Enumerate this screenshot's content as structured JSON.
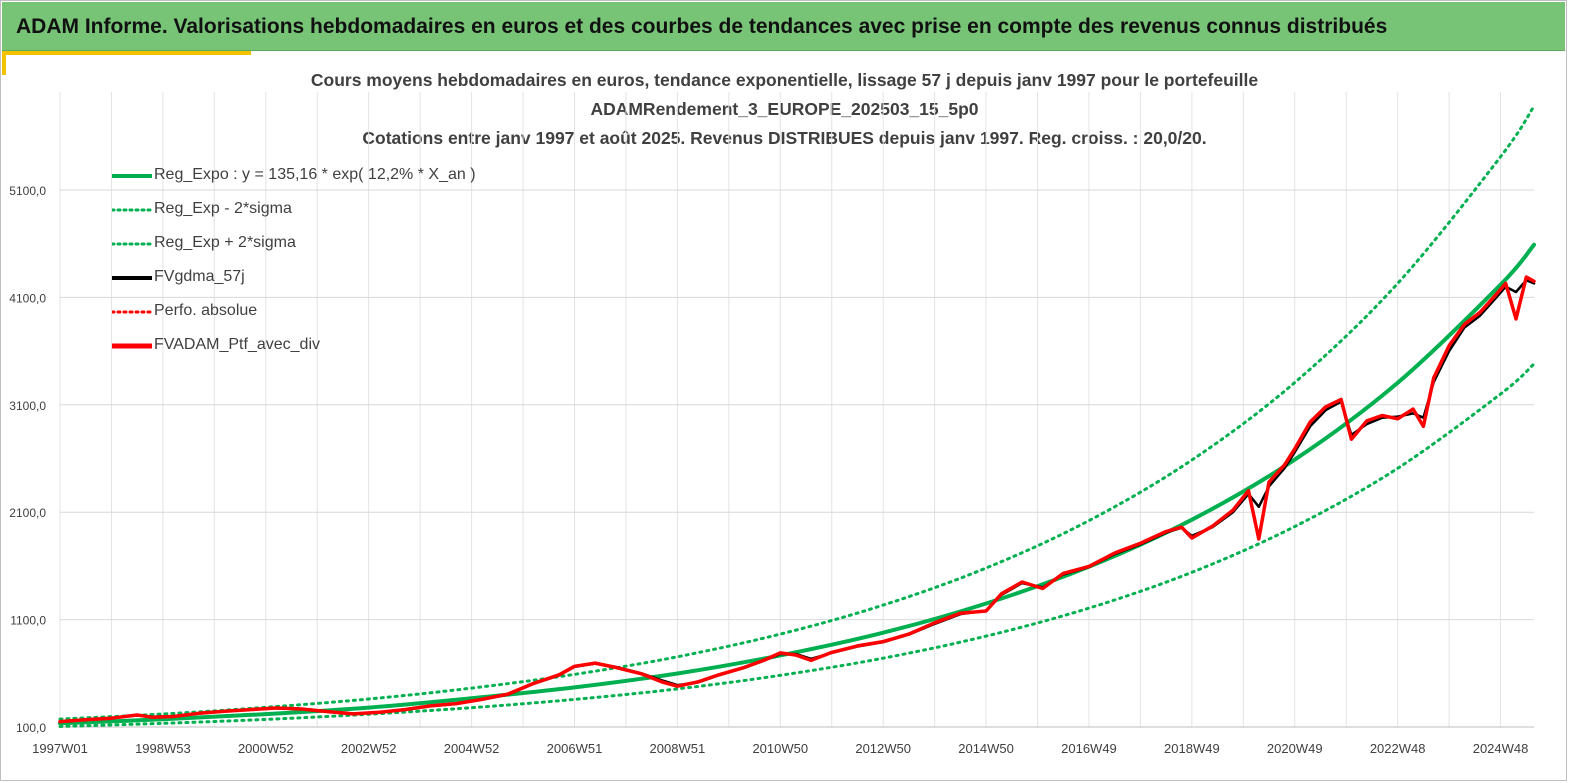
{
  "header": {
    "title": "ADAM Informe. Valorisations hebdomadaires en euros et des courbes de tendances avec prise en compte des revenus connus distribués"
  },
  "colors": {
    "header_bg": "#77c477",
    "accent": "#f2c200",
    "regression": "#00b050",
    "smoothed": "#000000",
    "portfolio": "#ff0000"
  },
  "chart_data": {
    "type": "line",
    "title_lines": [
      "Cours moyens hebdomadaires  en euros, tendance exponentielle, lissage 57 j depuis janv 1997 pour le portefeuille",
      "ADAMRendement_3_EUROPE_202503_15_5p0",
      "Cotations  entre janv 1997 et août 2025. Revenus DISTRIBUES depuis janv 1997. Reg. croiss. : 20,0/20."
    ],
    "xlabel": "",
    "ylabel": "",
    "x_range": [
      1997.0,
      2025.65
    ],
    "ylim": [
      100,
      5100
    ],
    "y_tick_values": [
      100,
      1100,
      2100,
      3100,
      4100,
      5100
    ],
    "y_tick_labels": [
      "100,0",
      "1100,0",
      "2100,0",
      "3100,0",
      "4100,0",
      "5100,0"
    ],
    "x_ticks": [
      {
        "label": "1997W01",
        "t": 1997.0
      },
      {
        "label": "1998W53",
        "t": 1999.0
      },
      {
        "label": "2000W52",
        "t": 2001.0
      },
      {
        "label": "2002W52",
        "t": 2003.0
      },
      {
        "label": "2004W52",
        "t": 2005.0
      },
      {
        "label": "2006W51",
        "t": 2007.0
      },
      {
        "label": "2008W51",
        "t": 2009.0
      },
      {
        "label": "2010W50",
        "t": 2011.0
      },
      {
        "label": "2012W50",
        "t": 2013.0
      },
      {
        "label": "2014W50",
        "t": 2015.0
      },
      {
        "label": "2016W49",
        "t": 2017.0
      },
      {
        "label": "2018W49",
        "t": 2019.0
      },
      {
        "label": "2020W49",
        "t": 2021.0
      },
      {
        "label": "2022W48",
        "t": 2023.0
      },
      {
        "label": "2024W48",
        "t": 2025.0
      }
    ],
    "grid": true,
    "legend_position": "top-left",
    "legend": [
      {
        "label": "Reg_Expo : y = 135,16 * exp( 12,2% *  X_an )",
        "color": "#00b050",
        "style": "solid"
      },
      {
        "label": "Reg_Exp - 2*sigma",
        "color": "#00b050",
        "style": "dotted"
      },
      {
        "label": "Reg_Exp + 2*sigma",
        "color": "#00b050",
        "style": "dotted"
      },
      {
        "label": "FVgdma_57j",
        "color": "#000000",
        "style": "solid"
      },
      {
        "label": "Perfo. absolue",
        "color": "#ff0000",
        "style": "dotted"
      },
      {
        "label": "FVADAM_Ptf_avec_div",
        "color": "#ff0000",
        "style": "solid"
      }
    ],
    "series": [
      {
        "name": "Reg_Expo : y = 135,16 * exp( 12,2% *  X_an )",
        "x": [
          1997.0,
          1999.0,
          2001.0,
          2003.0,
          2005.0,
          2007.0,
          2009.0,
          2011.0,
          2013.0,
          2015.0,
          2017.0,
          2019.0,
          2021.0,
          2023.0,
          2025.0,
          2025.65
        ],
        "y": [
          135,
          172,
          220,
          281,
          368,
          469,
          598,
          767,
          978,
          1250,
          1593,
          2030,
          2590,
          3305,
          4218,
          4590
        ]
      },
      {
        "name": "Reg_Exp - 2*sigma",
        "x": [
          1997.0,
          1999.0,
          2001.0,
          2003.0,
          2005.0,
          2007.0,
          2009.0,
          2011.0,
          2013.0,
          2015.0,
          2017.0,
          2019.0,
          2021.0,
          2023.0,
          2025.0,
          2025.65
        ],
        "y": [
          105,
          134,
          171,
          219,
          280,
          357,
          455,
          581,
          741,
          946,
          1207,
          1540,
          1967,
          2509,
          3201,
          3480
        ]
      },
      {
        "name": "Reg_Exp + 2*sigma",
        "x": [
          1997.0,
          1999.0,
          2001.0,
          2003.0,
          2005.0,
          2007.0,
          2009.0,
          2011.0,
          2013.0,
          2015.0,
          2017.0,
          2019.0,
          2021.0,
          2023.0,
          2025.0,
          2025.65
        ],
        "y": [
          174,
          221,
          283,
          361,
          462,
          590,
          754,
          965,
          1235,
          1580,
          2022,
          2586,
          3308,
          4230,
          5410,
          5880
        ]
      },
      {
        "name": "FVgdma_57j",
        "x": [
          1997.0,
          1997.5,
          1998.0,
          1998.5,
          1998.8,
          1999.2,
          1999.7,
          2000.2,
          2000.7,
          2001.2,
          2001.7,
          2002.2,
          2002.7,
          2003.2,
          2003.7,
          2004.2,
          2004.7,
          2005.2,
          2005.7,
          2006.2,
          2006.7,
          2007.0,
          2007.4,
          2007.8,
          2008.3,
          2008.7,
          2009.0,
          2009.4,
          2009.8,
          2010.3,
          2010.7,
          2011.0,
          2011.3,
          2011.6,
          2012.0,
          2012.5,
          2013.0,
          2013.5,
          2014.0,
          2014.5,
          2015.0,
          2015.3,
          2015.7,
          2016.1,
          2016.5,
          2017.0,
          2017.5,
          2018.0,
          2018.5,
          2018.8,
          2019.0,
          2019.4,
          2019.8,
          2020.1,
          2020.3,
          2020.5,
          2020.8,
          2021.0,
          2021.3,
          2021.6,
          2021.9,
          2022.1,
          2022.4,
          2022.7,
          2023.0,
          2023.3,
          2023.5,
          2023.7,
          2024.0,
          2024.3,
          2024.6,
          2024.9,
          2025.1,
          2025.3,
          2025.5,
          2025.65
        ],
        "y": [
          150,
          170,
          180,
          210,
          195,
          200,
          225,
          245,
          260,
          275,
          270,
          245,
          225,
          235,
          260,
          295,
          315,
          355,
          400,
          500,
          580,
          660,
          690,
          660,
          600,
          535,
          490,
          515,
          580,
          650,
          720,
          780,
          780,
          735,
          790,
          850,
          890,
          960,
          1060,
          1150,
          1185,
          1330,
          1440,
          1400,
          1520,
          1590,
          1710,
          1800,
          1910,
          1955,
          1880,
          1960,
          2100,
          2270,
          2150,
          2340,
          2510,
          2660,
          2900,
          3050,
          3130,
          2820,
          2920,
          2980,
          2990,
          3020,
          2980,
          3310,
          3600,
          3820,
          3930,
          4090,
          4200,
          4150,
          4260,
          4230
        ]
      },
      {
        "name": "Perfo. absolue",
        "x": [
          1997.0,
          1997.5,
          1998.0,
          1998.5,
          1998.8,
          1999.2,
          1999.7,
          2000.2,
          2000.7,
          2001.2,
          2001.7,
          2002.2,
          2002.7,
          2003.2,
          2003.7,
          2004.2,
          2004.7,
          2005.2,
          2005.7,
          2006.2,
          2006.7,
          2007.0,
          2007.4,
          2007.8,
          2008.3,
          2008.7,
          2009.0,
          2009.4,
          2009.8,
          2010.3,
          2010.7,
          2011.0,
          2011.3,
          2011.6,
          2012.0,
          2012.5,
          2013.0,
          2013.5,
          2014.0,
          2014.5,
          2015.0,
          2015.3,
          2015.7,
          2016.1,
          2016.5,
          2017.0,
          2017.5,
          2018.0,
          2018.5,
          2018.8,
          2019.0,
          2019.4,
          2019.8,
          2020.1,
          2020.3,
          2020.5,
          2020.8,
          2021.0,
          2021.3,
          2021.6,
          2021.9,
          2022.1,
          2022.4,
          2022.7,
          2023.0,
          2023.3,
          2023.5,
          2023.7,
          2024.0,
          2024.3,
          2024.6,
          2024.9,
          2025.1,
          2025.3,
          2025.5,
          2025.65
        ],
        "y": [
          150,
          168,
          182,
          212,
          190,
          198,
          228,
          247,
          262,
          277,
          268,
          243,
          222,
          237,
          262,
          296,
          318,
          357,
          405,
          505,
          586,
          665,
          695,
          655,
          595,
          520,
          480,
          520,
          585,
          655,
          725,
          790,
          770,
          720,
          795,
          855,
          895,
          965,
          1070,
          1160,
          1180,
          1340,
          1450,
          1390,
          1530,
          1595,
          1720,
          1810,
          1920,
          1960,
          1860,
          1970,
          2120,
          2300,
          1850,
          2380,
          2540,
          2690,
          2940,
          3080,
          3150,
          2780,
          2950,
          3000,
          2970,
          3060,
          2900,
          3350,
          3650,
          3850,
          3960,
          4120,
          4230,
          3900,
          4290,
          4250
        ]
      },
      {
        "name": "FVADAM_Ptf_avec_div",
        "x": [
          1997.0,
          1997.5,
          1998.0,
          1998.5,
          1998.8,
          1999.2,
          1999.7,
          2000.2,
          2000.7,
          2001.2,
          2001.7,
          2002.2,
          2002.7,
          2003.2,
          2003.7,
          2004.2,
          2004.7,
          2005.2,
          2005.7,
          2006.2,
          2006.7,
          2007.0,
          2007.4,
          2007.8,
          2008.3,
          2008.7,
          2009.0,
          2009.4,
          2009.8,
          2010.3,
          2010.7,
          2011.0,
          2011.3,
          2011.6,
          2012.0,
          2012.5,
          2013.0,
          2013.5,
          2014.0,
          2014.5,
          2015.0,
          2015.3,
          2015.7,
          2016.1,
          2016.5,
          2017.0,
          2017.5,
          2018.0,
          2018.5,
          2018.8,
          2019.0,
          2019.4,
          2019.8,
          2020.1,
          2020.3,
          2020.5,
          2020.8,
          2021.0,
          2021.3,
          2021.6,
          2021.9,
          2022.1,
          2022.4,
          2022.7,
          2023.0,
          2023.3,
          2023.5,
          2023.7,
          2024.0,
          2024.3,
          2024.6,
          2024.9,
          2025.1,
          2025.3,
          2025.5,
          2025.65
        ],
        "y": [
          150,
          168,
          182,
          212,
          190,
          198,
          228,
          247,
          262,
          277,
          268,
          243,
          222,
          237,
          262,
          296,
          318,
          357,
          405,
          505,
          586,
          665,
          695,
          655,
          595,
          520,
          480,
          520,
          585,
          655,
          725,
          790,
          770,
          720,
          795,
          855,
          895,
          965,
          1070,
          1160,
          1180,
          1340,
          1450,
          1390,
          1530,
          1595,
          1720,
          1810,
          1920,
          1960,
          1860,
          1970,
          2120,
          2300,
          1850,
          2380,
          2540,
          2690,
          2940,
          3080,
          3150,
          2780,
          2950,
          3000,
          2970,
          3060,
          2900,
          3350,
          3650,
          3850,
          3960,
          4120,
          4230,
          3900,
          4290,
          4250
        ]
      }
    ]
  }
}
